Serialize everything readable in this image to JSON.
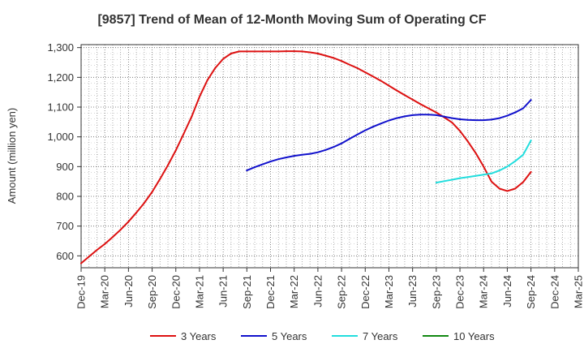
{
  "chart_data": {
    "type": "line",
    "title": "[9857]  Trend of Mean of 12-Month Moving Sum of Operating CF",
    "xlabel": "",
    "ylabel": "Amount (million yen)",
    "ylim": [
      560,
      1310
    ],
    "yticks": [
      600,
      700,
      800,
      900,
      1000,
      1100,
      1200,
      1300
    ],
    "ytick_labels": [
      "600",
      "700",
      "800",
      "900",
      "1,000",
      "1,100",
      "1,200",
      "1,300"
    ],
    "x_categories": [
      "Dec-19",
      "Mar-20",
      "Jun-20",
      "Sep-20",
      "Dec-20",
      "Mar-21",
      "Jun-21",
      "Sep-21",
      "Dec-21",
      "Mar-22",
      "Jun-22",
      "Sep-22",
      "Dec-22",
      "Mar-23",
      "Jun-23",
      "Sep-23",
      "Dec-23",
      "Mar-24",
      "Jun-24",
      "Sep-24",
      "Dec-24",
      "Mar-25"
    ],
    "x_index_range": [
      0,
      21
    ],
    "grid": true,
    "legend_position": "bottom",
    "series": [
      {
        "name": "3 Years",
        "color": "#dd1111",
        "x": [
          0,
          0.33,
          0.67,
          1,
          1.33,
          1.67,
          2,
          2.33,
          2.67,
          3,
          3.33,
          3.67,
          4,
          4.33,
          4.67,
          5,
          5.33,
          5.67,
          6,
          6.33,
          6.67,
          7,
          7.33,
          7.67,
          8,
          8.33,
          8.67,
          9,
          9.33,
          9.67,
          10,
          10.33,
          10.67,
          11,
          11.33,
          11.67,
          12,
          12.33,
          12.67,
          13,
          13.33,
          13.67,
          14,
          14.33,
          14.67,
          15,
          15.33,
          15.67,
          16,
          16.33,
          16.67,
          17,
          17.33,
          17.67,
          18,
          18.33,
          18.67,
          19
        ],
        "values": [
          575,
          597,
          620,
          640,
          663,
          688,
          715,
          745,
          778,
          815,
          858,
          905,
          955,
          1010,
          1068,
          1135,
          1190,
          1232,
          1262,
          1280,
          1287,
          1287,
          1287,
          1287,
          1287,
          1287,
          1288,
          1288,
          1287,
          1284,
          1280,
          1273,
          1265,
          1255,
          1243,
          1231,
          1217,
          1203,
          1188,
          1172,
          1156,
          1140,
          1125,
          1110,
          1096,
          1082,
          1066,
          1048,
          1020,
          985,
          945,
          900,
          850,
          826,
          818,
          826,
          848,
          882
        ]
      },
      {
        "name": "5 Years",
        "color": "#1111cc",
        "x": [
          7,
          7.33,
          7.67,
          8,
          8.33,
          8.67,
          9,
          9.33,
          9.67,
          10,
          10.33,
          10.67,
          11,
          11.33,
          11.67,
          12,
          12.33,
          12.67,
          13,
          13.33,
          13.67,
          14,
          14.33,
          14.67,
          15,
          15.33,
          15.67,
          16,
          16.33,
          16.67,
          17,
          17.33,
          17.67,
          18,
          18.33,
          18.67,
          19
        ],
        "values": [
          887,
          898,
          908,
          917,
          925,
          931,
          936,
          940,
          943,
          948,
          956,
          966,
          978,
          993,
          1008,
          1022,
          1034,
          1045,
          1055,
          1063,
          1069,
          1073,
          1075,
          1075,
          1073,
          1068,
          1063,
          1059,
          1057,
          1056,
          1056,
          1058,
          1063,
          1071,
          1082,
          1096,
          1124
        ]
      },
      {
        "name": "7 Years",
        "color": "#22dddd",
        "x": [
          15,
          15.33,
          15.67,
          16,
          16.33,
          16.67,
          17,
          17.33,
          17.67,
          18,
          18.33,
          18.67,
          19
        ],
        "values": [
          846,
          851,
          856,
          861,
          865,
          869,
          873,
          877,
          887,
          900,
          918,
          940,
          988
        ]
      },
      {
        "name": "10 Years",
        "color": "#118811",
        "x": [],
        "values": []
      }
    ]
  }
}
